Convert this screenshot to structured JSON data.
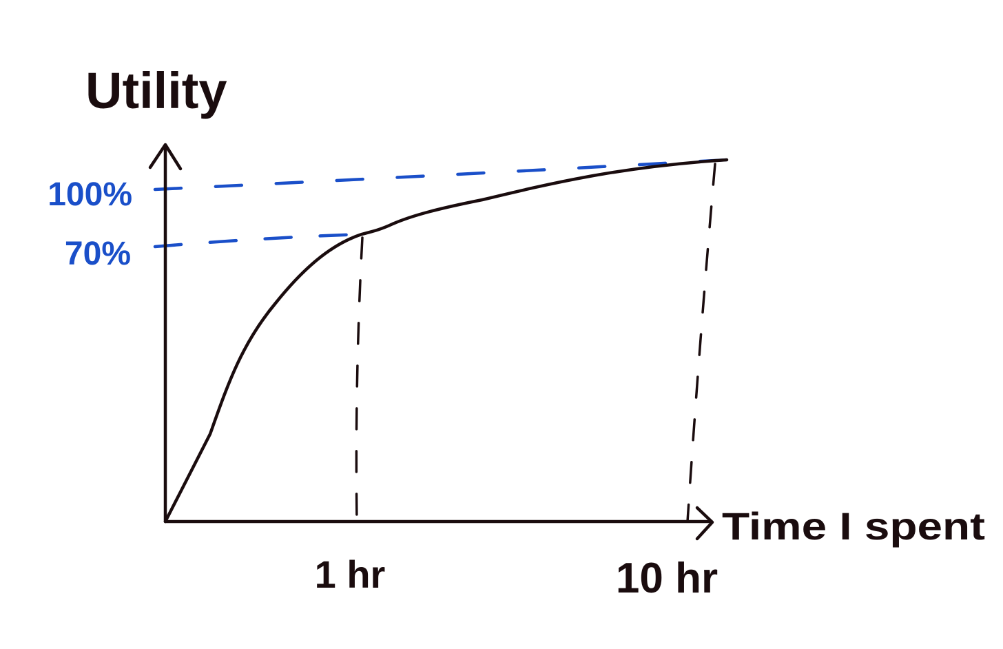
{
  "title": "Utility",
  "x_axis_label": "Time I spent",
  "y_labels": [
    "100%",
    "70%"
  ],
  "x_labels": [
    "1 hr",
    "10 hr"
  ]
}
